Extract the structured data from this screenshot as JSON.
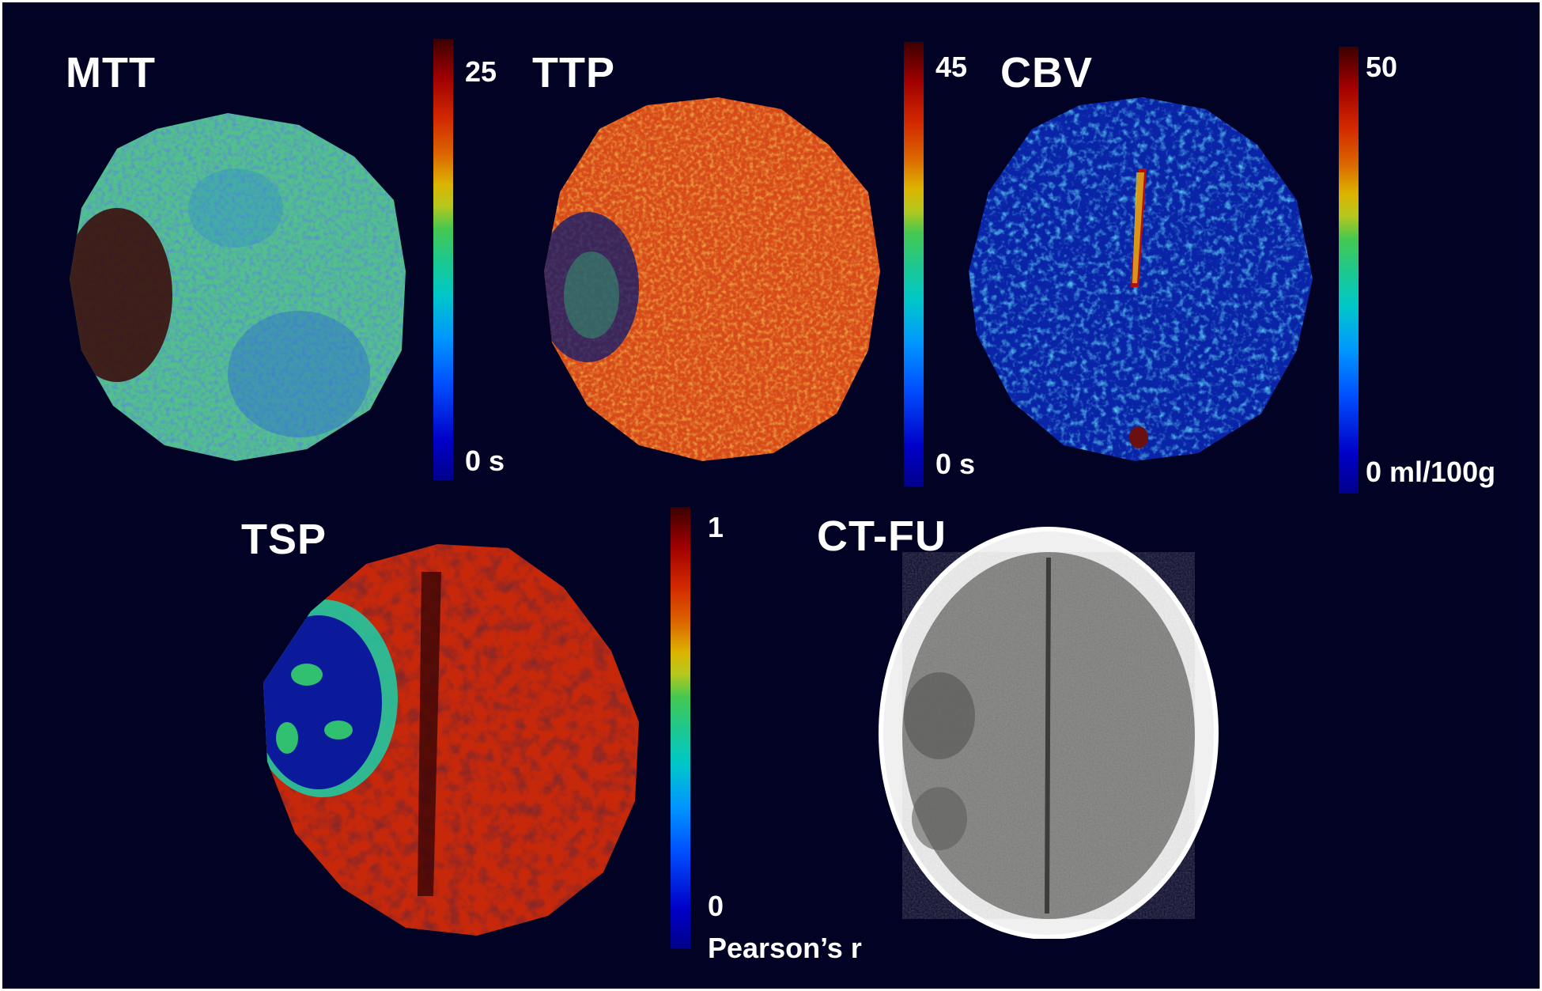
{
  "panels": {
    "mtt": {
      "title": "MTT",
      "scale_max": "25",
      "scale_min": "0 s"
    },
    "ttp": {
      "title": "TTP",
      "scale_max": "45",
      "scale_min": "0 s"
    },
    "cbv": {
      "title": "CBV",
      "scale_max": "50",
      "scale_min": "0 ml/100g"
    },
    "tsp": {
      "title": "TSP",
      "scale_max": "1",
      "scale_min": "0",
      "scale_unit": "Pearson’s r"
    },
    "ctfu": {
      "title": "CT-FU"
    }
  },
  "colors": {
    "background": "#020225",
    "colormap_low": "#00008a",
    "colormap_high": "#3c0000"
  }
}
